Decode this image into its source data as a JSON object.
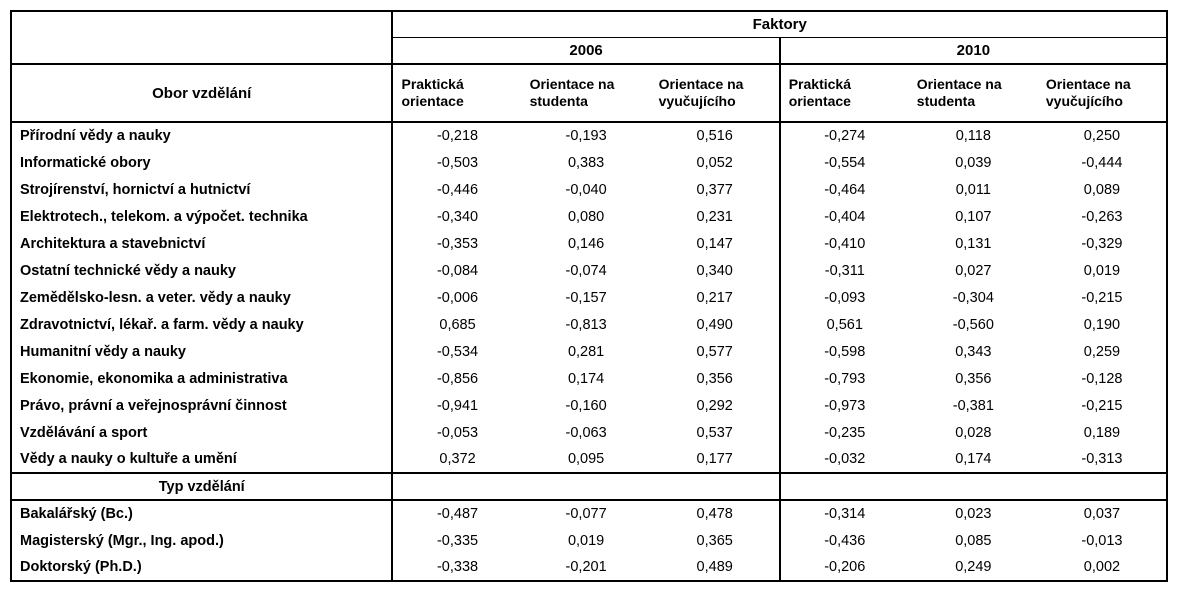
{
  "header": {
    "factors": "Faktory",
    "year_a": "2006",
    "year_b": "2010",
    "row_label": "Obor vzdělání",
    "cols": {
      "a1": "Praktická orientace",
      "a2": "Orientace na studenta",
      "a3": "Orientace na vyučujícího",
      "b1": "Praktická orientace",
      "b2": "Orientace na studenta",
      "b3": "Orientace na vyučujícího"
    }
  },
  "section2_label": "Typ vzdělání",
  "rows1": [
    {
      "label": "Přírodní vědy a nauky",
      "v": [
        "-0,218",
        "-0,193",
        "0,516",
        "-0,274",
        "0,118",
        "0,250"
      ]
    },
    {
      "label": "Informatické obory",
      "v": [
        "-0,503",
        "0,383",
        "0,052",
        "-0,554",
        "0,039",
        "-0,444"
      ]
    },
    {
      "label": "Strojírenství, hornictví a hutnictví",
      "v": [
        "-0,446",
        "-0,040",
        "0,377",
        "-0,464",
        "0,011",
        "0,089"
      ]
    },
    {
      "label": "Elektrotech., telekom. a výpočet. technika",
      "v": [
        "-0,340",
        "0,080",
        "0,231",
        "-0,404",
        "0,107",
        "-0,263"
      ]
    },
    {
      "label": "Architektura a stavebnictví",
      "v": [
        "-0,353",
        "0,146",
        "0,147",
        "-0,410",
        "0,131",
        "-0,329"
      ]
    },
    {
      "label": "Ostatní technické vědy a nauky",
      "v": [
        "-0,084",
        "-0,074",
        "0,340",
        "-0,311",
        "0,027",
        "0,019"
      ]
    },
    {
      "label": "Zemědělsko-lesn. a veter. vědy a nauky",
      "v": [
        "-0,006",
        "-0,157",
        "0,217",
        "-0,093",
        "-0,304",
        "-0,215"
      ]
    },
    {
      "label": "Zdravotnictví, lékař. a farm. vědy a nauky",
      "v": [
        "0,685",
        "-0,813",
        "0,490",
        "0,561",
        "-0,560",
        "0,190"
      ]
    },
    {
      "label": "Humanitní vědy a nauky",
      "v": [
        "-0,534",
        "0,281",
        "0,577",
        "-0,598",
        "0,343",
        "0,259"
      ]
    },
    {
      "label": "Ekonomie, ekonomika a administrativa",
      "v": [
        "-0,856",
        "0,174",
        "0,356",
        "-0,793",
        "0,356",
        "-0,128"
      ]
    },
    {
      "label": "Právo, právní a veřejnosprávní činnost",
      "v": [
        "-0,941",
        "-0,160",
        "0,292",
        "-0,973",
        "-0,381",
        "-0,215"
      ]
    },
    {
      "label": "Vzdělávání a sport",
      "v": [
        "-0,053",
        "-0,063",
        "0,537",
        "-0,235",
        "0,028",
        "0,189"
      ]
    },
    {
      "label": "Vědy a nauky o kultuře a umění",
      "v": [
        "0,372",
        "0,095",
        "0,177",
        "-0,032",
        "0,174",
        "-0,313"
      ]
    }
  ],
  "rows2": [
    {
      "label": "Bakalářský (Bc.)",
      "v": [
        "-0,487",
        "-0,077",
        "0,478",
        "-0,314",
        "0,023",
        "0,037"
      ]
    },
    {
      "label": "Magisterský (Mgr., Ing. apod.)",
      "v": [
        "-0,335",
        "0,019",
        "0,365",
        "-0,436",
        "0,085",
        "-0,013"
      ]
    },
    {
      "label": "Doktorský (Ph.D.)",
      "v": [
        "-0,338",
        "-0,201",
        "0,489",
        "-0,206",
        "0,249",
        "0,002"
      ]
    }
  ],
  "style": {
    "background_color": "#ffffff",
    "border_color": "#000000",
    "text_color": "#000000",
    "header_fontsize": 15,
    "body_fontsize": 14.5,
    "font_family": "Arial, sans-serif",
    "col_widths_pct": [
      33.0,
      11.17,
      11.17,
      11.17,
      11.17,
      11.17,
      11.17
    ],
    "num_align": "center",
    "label_align": "left"
  }
}
